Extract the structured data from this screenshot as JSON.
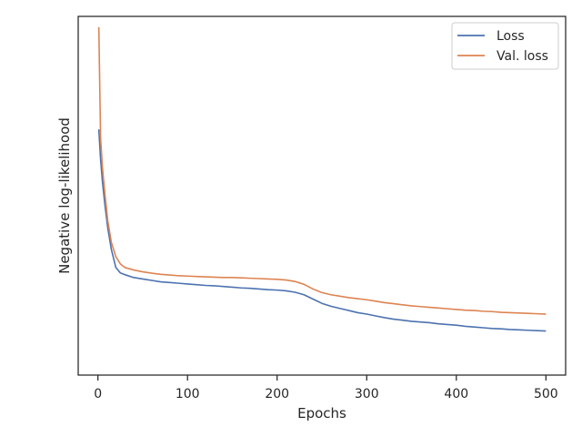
{
  "chart_data": {
    "type": "line",
    "xlabel": "Epochs",
    "ylabel": "Negative log-likelihood",
    "xlim": [
      -22,
      522
    ],
    "ylim": [
      0,
      1
    ],
    "xticks": [
      0,
      100,
      200,
      300,
      400,
      500
    ],
    "y_tick_labels_shown": false,
    "grid": false,
    "legend": "top-right",
    "series": [
      {
        "name": "Loss",
        "color": "#4c72b0",
        "x": [
          1,
          3,
          5,
          8,
          11,
          15,
          20,
          25,
          30,
          40,
          50,
          60,
          70,
          80,
          90,
          100,
          110,
          120,
          130,
          140,
          150,
          160,
          170,
          180,
          190,
          200,
          210,
          220,
          230,
          240,
          250,
          260,
          270,
          280,
          290,
          300,
          310,
          320,
          330,
          340,
          350,
          360,
          370,
          380,
          390,
          400,
          410,
          420,
          430,
          440,
          450,
          460,
          470,
          480,
          490,
          500
        ],
        "y": [
          0.685,
          0.6,
          0.54,
          0.47,
          0.41,
          0.35,
          0.3,
          0.285,
          0.28,
          0.272,
          0.268,
          0.264,
          0.26,
          0.258,
          0.256,
          0.254,
          0.252,
          0.25,
          0.249,
          0.247,
          0.245,
          0.243,
          0.242,
          0.24,
          0.238,
          0.237,
          0.235,
          0.231,
          0.224,
          0.212,
          0.2,
          0.192,
          0.186,
          0.18,
          0.174,
          0.17,
          0.165,
          0.16,
          0.156,
          0.153,
          0.15,
          0.148,
          0.146,
          0.143,
          0.141,
          0.139,
          0.136,
          0.134,
          0.132,
          0.13,
          0.129,
          0.127,
          0.126,
          0.125,
          0.124,
          0.123
        ]
      },
      {
        "name": "Val. loss",
        "color": "#dd8452",
        "x": [
          1,
          3,
          5,
          8,
          11,
          15,
          20,
          25,
          30,
          40,
          50,
          60,
          70,
          80,
          90,
          100,
          110,
          120,
          130,
          140,
          150,
          160,
          170,
          180,
          190,
          200,
          210,
          220,
          230,
          240,
          250,
          260,
          270,
          280,
          290,
          300,
          310,
          320,
          330,
          340,
          350,
          360,
          370,
          380,
          390,
          400,
          410,
          420,
          430,
          440,
          450,
          460,
          470,
          480,
          490,
          500
        ],
        "y": [
          0.97,
          0.66,
          0.58,
          0.5,
          0.43,
          0.37,
          0.33,
          0.31,
          0.3,
          0.293,
          0.288,
          0.284,
          0.281,
          0.279,
          0.277,
          0.276,
          0.275,
          0.274,
          0.273,
          0.272,
          0.272,
          0.271,
          0.27,
          0.269,
          0.268,
          0.267,
          0.265,
          0.261,
          0.253,
          0.24,
          0.23,
          0.224,
          0.22,
          0.216,
          0.213,
          0.21,
          0.206,
          0.202,
          0.199,
          0.196,
          0.193,
          0.191,
          0.189,
          0.187,
          0.185,
          0.183,
          0.181,
          0.18,
          0.178,
          0.177,
          0.175,
          0.174,
          0.173,
          0.172,
          0.171,
          0.17
        ]
      }
    ]
  }
}
